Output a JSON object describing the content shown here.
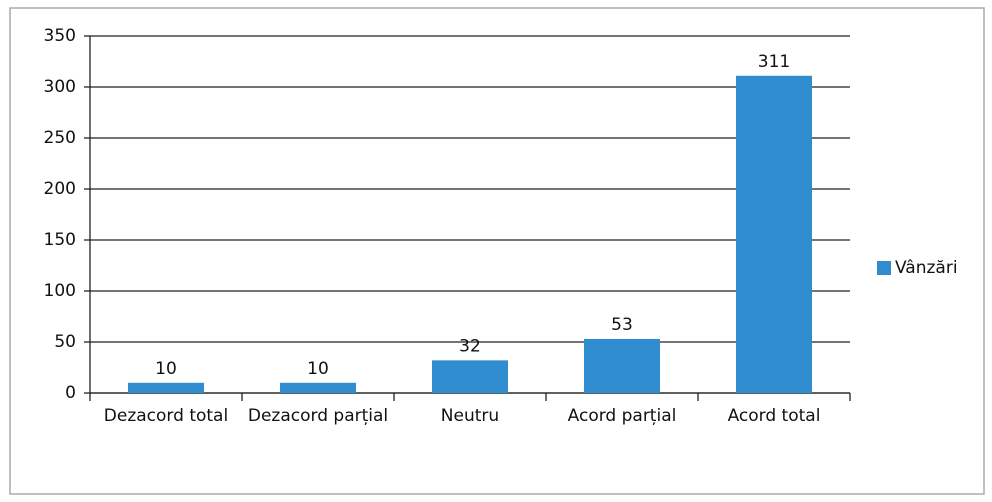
{
  "chart_data": {
    "type": "bar",
    "categories": [
      "Dezacord total",
      "Dezacord parțial",
      "Neutru",
      "Acord parțial",
      "Acord total"
    ],
    "series": [
      {
        "name": "Vânzări",
        "color": "#2f8ccf",
        "values": [
          10,
          10,
          32,
          53,
          311
        ]
      }
    ],
    "ylim": [
      0,
      350
    ],
    "yticks": [
      0,
      50,
      100,
      150,
      200,
      250,
      300,
      350
    ],
    "grid": true,
    "legend": "right"
  }
}
